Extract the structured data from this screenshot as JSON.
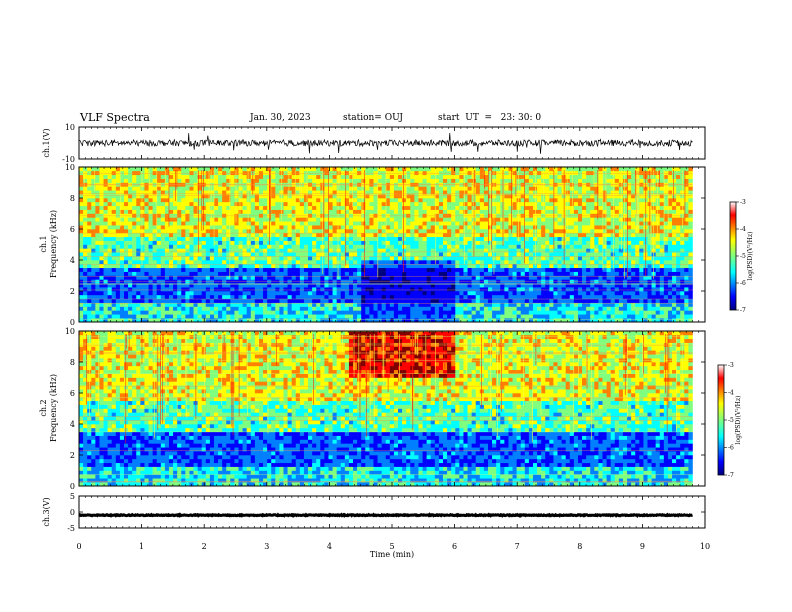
{
  "header": {
    "title": "VLF Spectra",
    "date": "Jan. 30, 2023",
    "station": "station= OUJ",
    "start": "start  UT  =   23: 30: 0"
  },
  "chart_data": [
    {
      "type": "line",
      "panel": "ch1-waveform",
      "ylabel": "ch.1(V)",
      "ylim": [
        -10,
        10
      ],
      "yticks": [
        "10",
        "-10"
      ],
      "x_range_min": [
        0,
        9.8
      ],
      "baseline_v": 0,
      "color": "#000000"
    },
    {
      "type": "heatmap",
      "panel": "ch1-spectrogram",
      "ylabel_line1": "ch.1",
      "ylabel_line2": "Frequency (kHz)",
      "ylim": [
        0,
        10
      ],
      "yticks": [
        "0",
        "2",
        "4",
        "6",
        "8",
        "10"
      ],
      "x_range_min": [
        0,
        9.8
      ],
      "colorbar": {
        "label": "log(PSD)(V²/Hz)",
        "range": [
          -7,
          -3
        ],
        "ticks": [
          "-3",
          "-4",
          "-5",
          "-6",
          "-7"
        ]
      }
    },
    {
      "type": "heatmap",
      "panel": "ch2-spectrogram",
      "ylabel_line1": "ch.2",
      "ylabel_line2": "Frequency (kHz)",
      "ylim": [
        0,
        10
      ],
      "yticks": [
        "0",
        "2",
        "4",
        "6",
        "8",
        "10"
      ],
      "x_range_min": [
        0,
        9.8
      ],
      "colorbar": {
        "label": "log(PSD)(V²/Hz)",
        "range": [
          -7,
          -3
        ],
        "ticks": [
          "-3",
          "-4",
          "-5",
          "-6",
          "-7"
        ]
      }
    },
    {
      "type": "line",
      "panel": "ch3-waveform",
      "ylabel": "ch.3(V)",
      "ylim": [
        -5,
        5
      ],
      "yticks": [
        "5",
        "0",
        "-5"
      ],
      "x_range_min": [
        0,
        9.8
      ],
      "baseline_v": -1,
      "color": "#000000"
    }
  ],
  "xaxis": {
    "label": "Time (min)",
    "ticks": [
      "0",
      "1",
      "2",
      "3",
      "4",
      "5",
      "6",
      "7",
      "8",
      "9",
      "10"
    ],
    "range": [
      0,
      10
    ]
  },
  "colors": {
    "jet": [
      "#00007f",
      "#0000ff",
      "#007fff",
      "#00ffff",
      "#7fff7f",
      "#ffff00",
      "#ff7f00",
      "#ff0000",
      "#7f0000"
    ]
  }
}
